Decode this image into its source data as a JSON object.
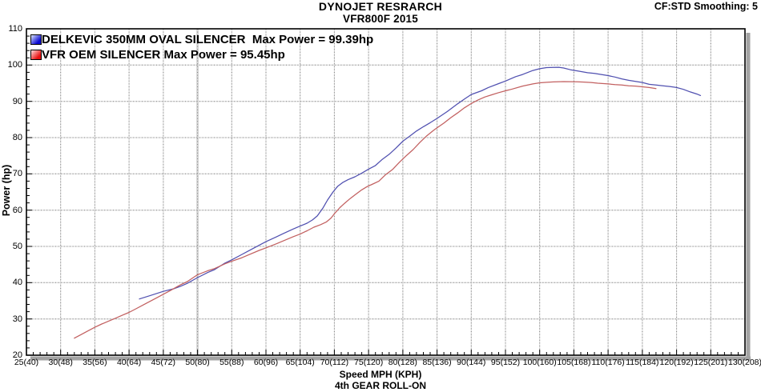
{
  "header": {
    "title": "DYNOJET RESRARCH",
    "subtitle": "VFR800F 2015",
    "smoothing": "CF:STD Smoothing: 5"
  },
  "legend": [
    {
      "label": "DELKEVIC 350MM OVAL SILENCER  Max Power = 99.39hp",
      "swatch_from": "#dde7ff",
      "swatch_to": "#0a0ad2"
    },
    {
      "label": "VFR OEM SILENCER Max Power = 95.45hp",
      "swatch_from": "#ffdede",
      "swatch_to": "#e81010"
    }
  ],
  "chart_data": {
    "type": "line",
    "title": "DYNOJET RESRARCH",
    "subtitle": "VFR800F 2015",
    "xlabel": "Speed MPH (KPH)",
    "ylabel": "Power (hp)",
    "footnote": "4th GEAR ROLL-ON",
    "xlim": [
      25,
      130
    ],
    "ylim": [
      20,
      110
    ],
    "x_major_step": 5,
    "x_minor_step": 1,
    "y_major_step": 10,
    "y_minor_step": 2,
    "grid": "gray dotted gridlines at every major tick",
    "legend_position": "top-left",
    "x_tick_labels": [
      "25(40)",
      "30(48)",
      "35(56)",
      "40(64)",
      "45(72)",
      "50(80)",
      "55(88)",
      "60(96)",
      "65(104)",
      "70(112)",
      "75(120)",
      "80(128)",
      "85(136)",
      "90(144)",
      "95(152)",
      "100(160)",
      "105(168)",
      "110(176)",
      "115(184)",
      "120(192)",
      "125(201)",
      "130(208)"
    ],
    "y_tick_labels": [
      "20",
      "30",
      "40",
      "50",
      "60",
      "70",
      "80",
      "90",
      "100",
      "110"
    ],
    "series": [
      {
        "name": "DELKEVIC 350MM OVAL SILENCER",
        "max_power_hp": 99.39,
        "color": "#5050b0",
        "points": [
          [
            41.5,
            35.5
          ],
          [
            43,
            36.4
          ],
          [
            45,
            37.6
          ],
          [
            46.5,
            38.3
          ],
          [
            47.5,
            39.0
          ],
          [
            48.5,
            39.8
          ],
          [
            50,
            41.4
          ],
          [
            51.5,
            42.8
          ],
          [
            52.5,
            43.6
          ],
          [
            54,
            45.4
          ],
          [
            55,
            46.3
          ],
          [
            56.5,
            47.8
          ],
          [
            57.5,
            48.8
          ],
          [
            59,
            50.3
          ],
          [
            60,
            51.3
          ],
          [
            61.5,
            52.6
          ],
          [
            62.5,
            53.5
          ],
          [
            64,
            54.8
          ],
          [
            65,
            55.6
          ],
          [
            66,
            56.4
          ],
          [
            66.8,
            57.3
          ],
          [
            67.5,
            58.4
          ],
          [
            68.3,
            60.5
          ],
          [
            69,
            62.8
          ],
          [
            69.8,
            65.0
          ],
          [
            70.5,
            66.6
          ],
          [
            71.2,
            67.6
          ],
          [
            72,
            68.4
          ],
          [
            73,
            69.2
          ],
          [
            74,
            70.2
          ],
          [
            75,
            71.3
          ],
          [
            76,
            72.3
          ],
          [
            77,
            74.0
          ],
          [
            78,
            75.4
          ],
          [
            79,
            77.1
          ],
          [
            80,
            79.0
          ],
          [
            81,
            80.4
          ],
          [
            82,
            81.8
          ],
          [
            83,
            83.0
          ],
          [
            84,
            84.1
          ],
          [
            85,
            85.3
          ],
          [
            86.5,
            87.2
          ],
          [
            88,
            89.3
          ],
          [
            89,
            90.6
          ],
          [
            90,
            91.9
          ],
          [
            91.5,
            92.9
          ],
          [
            92.5,
            93.8
          ],
          [
            94,
            94.9
          ],
          [
            95,
            95.6
          ],
          [
            96.5,
            96.8
          ],
          [
            97.5,
            97.4
          ],
          [
            99,
            98.5
          ],
          [
            100,
            99.0
          ],
          [
            101,
            99.3
          ],
          [
            102,
            99.35
          ],
          [
            102.8,
            99.39
          ],
          [
            103.5,
            99.2
          ],
          [
            104.5,
            98.7
          ],
          [
            105.5,
            98.4
          ],
          [
            107,
            97.9
          ],
          [
            108,
            97.7
          ],
          [
            109,
            97.4
          ],
          [
            110,
            97.1
          ],
          [
            111,
            96.7
          ],
          [
            112,
            96.2
          ],
          [
            113,
            95.8
          ],
          [
            114,
            95.5
          ],
          [
            115,
            95.2
          ],
          [
            116,
            94.7
          ],
          [
            117,
            94.5
          ],
          [
            118,
            94.3
          ],
          [
            119,
            94.1
          ],
          [
            120,
            93.8
          ],
          [
            121,
            93.3
          ],
          [
            122,
            92.6
          ],
          [
            123,
            92.0
          ],
          [
            123.5,
            91.6
          ]
        ]
      },
      {
        "name": "VFR OEM SILENCER",
        "max_power_hp": 95.45,
        "color": "#c26060",
        "points": [
          [
            32,
            24.7
          ],
          [
            33,
            25.7
          ],
          [
            34,
            26.7
          ],
          [
            35,
            27.7
          ],
          [
            36,
            28.6
          ],
          [
            37,
            29.4
          ],
          [
            38,
            30.2
          ],
          [
            39,
            31.0
          ],
          [
            40,
            31.8
          ],
          [
            41,
            32.8
          ],
          [
            42.5,
            34.3
          ],
          [
            44,
            35.8
          ],
          [
            45,
            36.8
          ],
          [
            46,
            37.8
          ],
          [
            47.5,
            39.4
          ],
          [
            48.5,
            40.3
          ],
          [
            50,
            42.2
          ],
          [
            51.5,
            43.3
          ],
          [
            52.5,
            43.9
          ],
          [
            54,
            45.2
          ],
          [
            55,
            45.9
          ],
          [
            56.5,
            46.9
          ],
          [
            57.5,
            47.7
          ],
          [
            59,
            48.9
          ],
          [
            60,
            49.6
          ],
          [
            61.5,
            50.7
          ],
          [
            62.5,
            51.5
          ],
          [
            64,
            52.7
          ],
          [
            65,
            53.4
          ],
          [
            66,
            54.3
          ],
          [
            67,
            55.3
          ],
          [
            68,
            56.0
          ],
          [
            68.8,
            56.7
          ],
          [
            69.5,
            57.8
          ],
          [
            70,
            59.0
          ],
          [
            70.8,
            60.7
          ],
          [
            71.5,
            61.9
          ],
          [
            72.3,
            63.2
          ],
          [
            73,
            64.2
          ],
          [
            74,
            65.6
          ],
          [
            74.8,
            66.5
          ],
          [
            75.5,
            67.1
          ],
          [
            76.5,
            68.0
          ],
          [
            77.5,
            69.8
          ],
          [
            78.5,
            71.2
          ],
          [
            79.5,
            73.2
          ],
          [
            80.5,
            75.0
          ],
          [
            81.5,
            76.7
          ],
          [
            82.5,
            78.7
          ],
          [
            83.5,
            80.5
          ],
          [
            84.5,
            82.0
          ],
          [
            85,
            82.7
          ],
          [
            86,
            84.0
          ],
          [
            87,
            85.5
          ],
          [
            88,
            86.8
          ],
          [
            89,
            88.2
          ],
          [
            90,
            89.4
          ],
          [
            91,
            90.4
          ],
          [
            92,
            91.2
          ],
          [
            93,
            91.8
          ],
          [
            94,
            92.4
          ],
          [
            95,
            92.9
          ],
          [
            96,
            93.4
          ],
          [
            97.5,
            94.2
          ],
          [
            99,
            94.8
          ],
          [
            100,
            95.1
          ],
          [
            101,
            95.25
          ],
          [
            102,
            95.35
          ],
          [
            103.5,
            95.45
          ],
          [
            104.5,
            95.42
          ],
          [
            105.5,
            95.38
          ],
          [
            106.5,
            95.3
          ],
          [
            107.5,
            95.2
          ],
          [
            108.5,
            95.0
          ],
          [
            110,
            94.8
          ],
          [
            111,
            94.6
          ],
          [
            112,
            94.5
          ],
          [
            113,
            94.3
          ],
          [
            114,
            94.2
          ],
          [
            115,
            94.0
          ],
          [
            116,
            93.8
          ],
          [
            117,
            93.5
          ]
        ]
      }
    ]
  }
}
